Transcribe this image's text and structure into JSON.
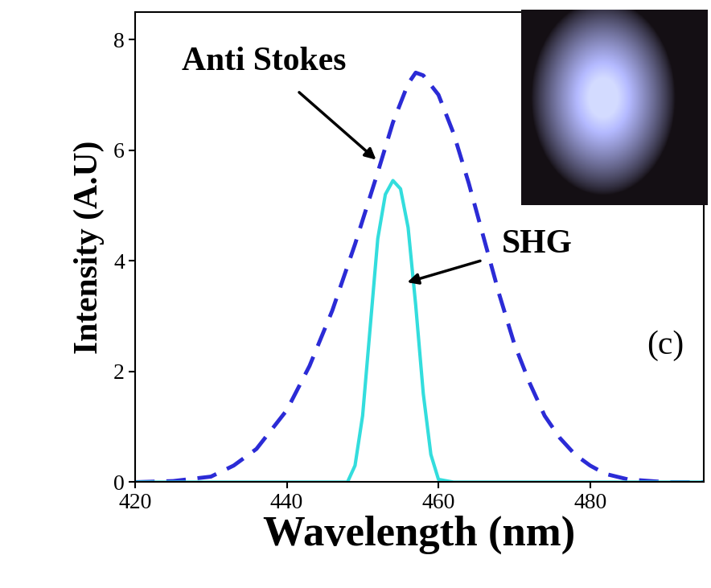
{
  "chart_data": {
    "type": "line",
    "x_label": "Wavelength (nm)",
    "y_label": "Intensity (A.U)",
    "annotations": [
      "(c)"
    ],
    "xlim": [
      420,
      495
    ],
    "xticks": [
      420,
      440,
      460,
      480
    ],
    "ylim": [
      0,
      8.5
    ],
    "yticks": [
      0,
      2,
      4,
      6,
      8
    ],
    "grid": false,
    "series": [
      {
        "name": "Anti Stokes",
        "color": "#2b2bd6",
        "line_style": "dashed",
        "x": [
          420,
          425,
          430,
          433,
          436,
          440,
          443,
          446,
          449,
          452,
          454,
          456,
          457,
          458,
          460,
          462,
          464,
          466,
          468,
          470,
          472,
          474,
          476,
          478,
          480,
          482,
          485,
          490,
          495
        ],
        "values": [
          0,
          0.02,
          0.1,
          0.3,
          0.6,
          1.3,
          2.1,
          3.1,
          4.3,
          5.6,
          6.5,
          7.2,
          7.4,
          7.35,
          7.0,
          6.3,
          5.4,
          4.4,
          3.4,
          2.5,
          1.8,
          1.2,
          0.8,
          0.5,
          0.3,
          0.15,
          0.05,
          0,
          0
        ]
      },
      {
        "name": "SHG",
        "color": "#33dddd",
        "line_style": "solid",
        "x": [
          420,
          445,
          448,
          449,
          450,
          451,
          452,
          453,
          454,
          455,
          456,
          457,
          458,
          459,
          460,
          462,
          495
        ],
        "values": [
          0,
          0,
          0,
          0.3,
          1.2,
          2.8,
          4.4,
          5.2,
          5.45,
          5.3,
          4.6,
          3.2,
          1.6,
          0.5,
          0.05,
          0,
          0
        ]
      }
    ]
  }
}
